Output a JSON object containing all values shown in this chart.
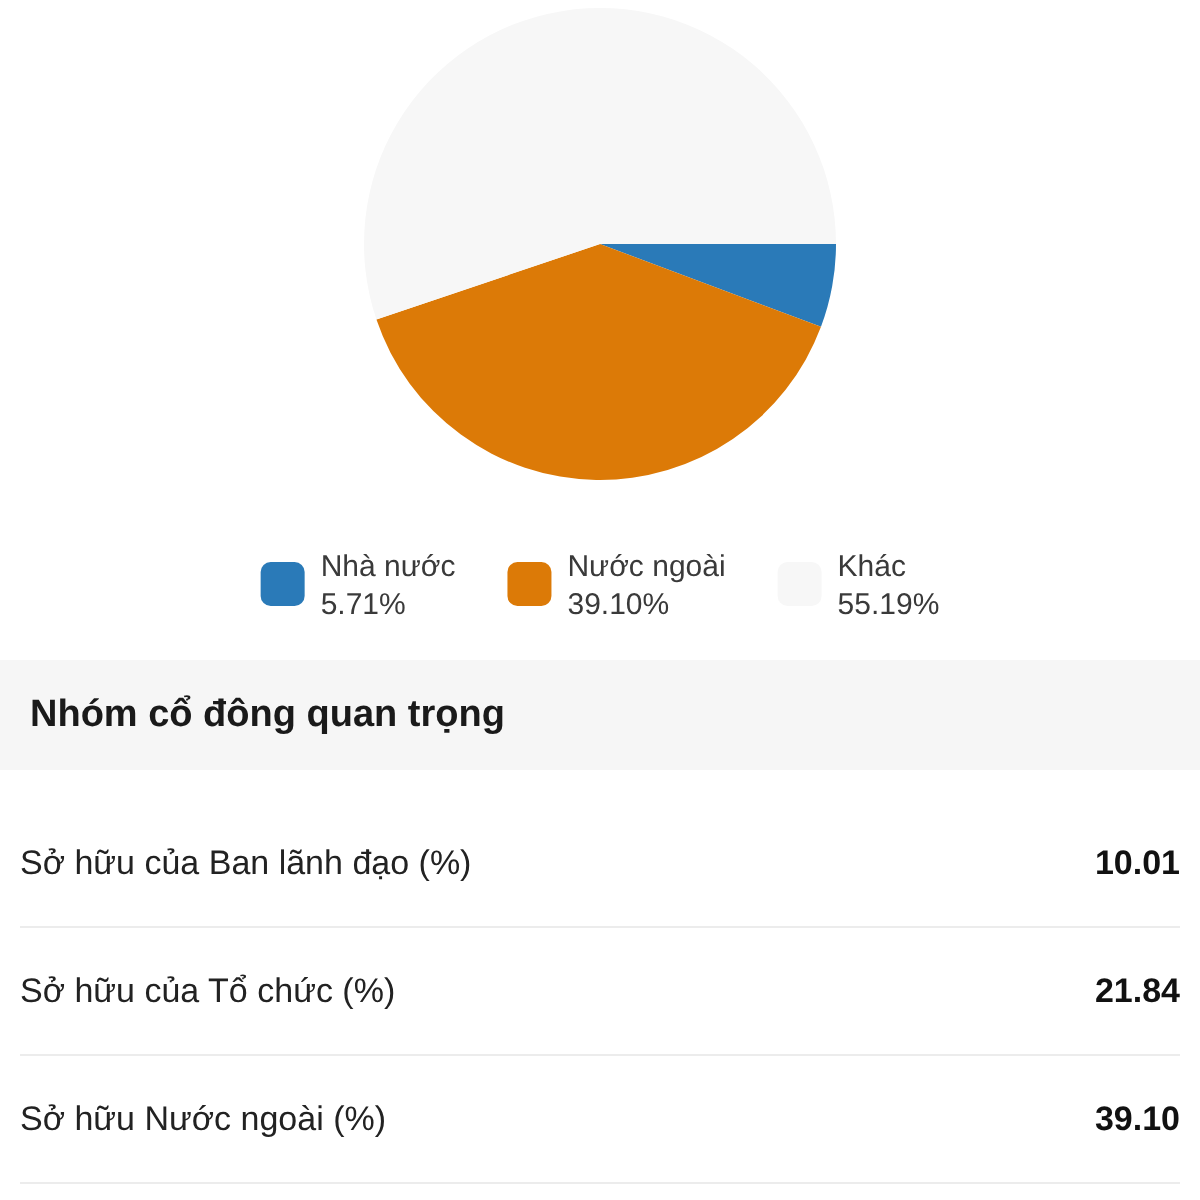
{
  "chart_data": [
    {
      "type": "pie",
      "categories": [
        "Nhà nước",
        "Nước ngoài",
        "Khác"
      ],
      "values": [
        5.71,
        39.1,
        55.19
      ],
      "value_labels": [
        "5.71%",
        "39.10%",
        "55.19%"
      ],
      "colors": [
        "#2a7ab8",
        "#dc7a07",
        "#f7f7f7"
      ],
      "legend": "bottom"
    },
    {
      "type": "other",
      "title": "Nhóm cổ đông quan trọng",
      "categories": [
        "Sở hữu của Ban lãnh đạo (%)",
        "Sở hữu của Tổ chức (%)",
        "Sở hữu Nước ngoài (%)"
      ],
      "values": [
        10.01,
        21.84,
        39.1
      ],
      "value_labels": [
        "10.01",
        "21.84",
        "39.10"
      ]
    }
  ]
}
